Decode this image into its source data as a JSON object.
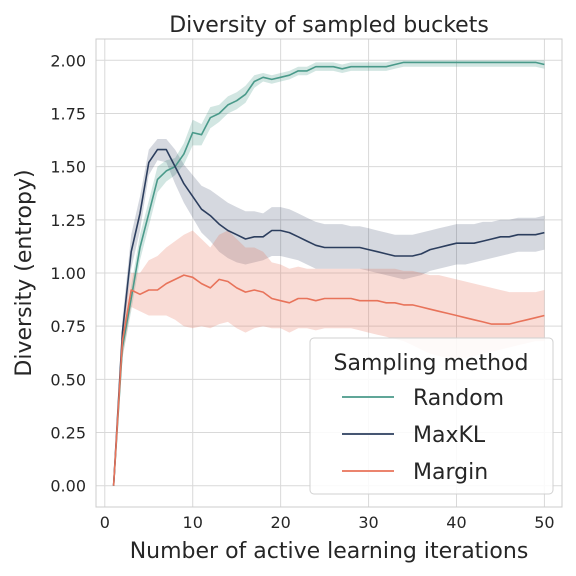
{
  "chart_data": {
    "type": "line",
    "title": "Diversity of sampled buckets",
    "xlabel": "Number of active learning iterations",
    "ylabel": "Diversity (entropy)",
    "xlim": [
      -1,
      52
    ],
    "ylim": [
      -0.1,
      2.1
    ],
    "xticks": [
      0,
      10,
      20,
      30,
      40,
      50
    ],
    "yticks": [
      0.0,
      0.25,
      0.5,
      0.75,
      1.0,
      1.25,
      1.5,
      1.75,
      2.0
    ],
    "ytick_labels": [
      "0.00",
      "0.25",
      "0.50",
      "0.75",
      "1.00",
      "1.25",
      "1.50",
      "1.75",
      "2.00"
    ],
    "grid": true,
    "legend": {
      "title": "Sampling method",
      "placement": "bottom-right"
    },
    "x": [
      1,
      2,
      3,
      4,
      5,
      6,
      7,
      8,
      9,
      10,
      11,
      12,
      13,
      14,
      15,
      16,
      17,
      18,
      19,
      20,
      21,
      22,
      23,
      24,
      25,
      26,
      27,
      28,
      29,
      30,
      31,
      32,
      33,
      34,
      35,
      36,
      37,
      38,
      39,
      40,
      41,
      42,
      43,
      44,
      45,
      46,
      47,
      48,
      49,
      50
    ],
    "series": [
      {
        "name": "Random",
        "color": "#4a9a8a",
        "band_opacity": 0.25,
        "values": [
          0.0,
          0.65,
          0.88,
          1.12,
          1.28,
          1.44,
          1.48,
          1.5,
          1.56,
          1.66,
          1.65,
          1.73,
          1.75,
          1.79,
          1.81,
          1.84,
          1.9,
          1.92,
          1.91,
          1.92,
          1.93,
          1.95,
          1.95,
          1.97,
          1.97,
          1.97,
          1.96,
          1.97,
          1.97,
          1.97,
          1.97,
          1.97,
          1.98,
          1.99,
          1.99,
          1.99,
          1.99,
          1.99,
          1.99,
          1.99,
          1.99,
          1.99,
          1.99,
          1.99,
          1.99,
          1.99,
          1.99,
          1.99,
          1.99,
          1.98
        ],
        "lower": [
          0.0,
          0.6,
          0.82,
          1.06,
          1.22,
          1.38,
          1.43,
          1.46,
          1.51,
          1.6,
          1.6,
          1.68,
          1.71,
          1.75,
          1.77,
          1.8,
          1.87,
          1.9,
          1.89,
          1.9,
          1.91,
          1.93,
          1.93,
          1.95,
          1.95,
          1.95,
          1.94,
          1.95,
          1.95,
          1.95,
          1.95,
          1.95,
          1.96,
          1.97,
          1.97,
          1.97,
          1.97,
          1.97,
          1.97,
          1.97,
          1.97,
          1.97,
          1.97,
          1.97,
          1.97,
          1.97,
          1.97,
          1.97,
          1.97,
          1.96
        ],
        "upper": [
          0.0,
          0.7,
          0.94,
          1.18,
          1.34,
          1.5,
          1.53,
          1.54,
          1.61,
          1.72,
          1.7,
          1.78,
          1.79,
          1.83,
          1.85,
          1.88,
          1.93,
          1.94,
          1.93,
          1.94,
          1.95,
          1.97,
          1.97,
          1.99,
          1.99,
          1.99,
          1.98,
          1.99,
          1.99,
          1.99,
          1.99,
          1.99,
          2.0,
          2.0,
          2.0,
          2.0,
          2.0,
          2.0,
          2.0,
          2.0,
          2.0,
          2.0,
          2.0,
          2.0,
          2.0,
          2.0,
          2.0,
          2.0,
          2.0,
          2.0
        ]
      },
      {
        "name": "MaxKL",
        "color": "#2c3e5e",
        "band_opacity": 0.2,
        "values": [
          0.0,
          0.72,
          1.1,
          1.28,
          1.52,
          1.58,
          1.58,
          1.5,
          1.42,
          1.36,
          1.3,
          1.27,
          1.23,
          1.2,
          1.18,
          1.16,
          1.17,
          1.17,
          1.2,
          1.2,
          1.19,
          1.17,
          1.15,
          1.13,
          1.12,
          1.12,
          1.12,
          1.12,
          1.12,
          1.11,
          1.1,
          1.09,
          1.08,
          1.08,
          1.08,
          1.09,
          1.11,
          1.12,
          1.13,
          1.14,
          1.14,
          1.14,
          1.15,
          1.16,
          1.17,
          1.17,
          1.18,
          1.18,
          1.18,
          1.19
        ],
        "lower": [
          0.0,
          0.66,
          1.02,
          1.2,
          1.46,
          1.53,
          1.52,
          1.42,
          1.33,
          1.26,
          1.19,
          1.15,
          1.1,
          1.07,
          1.05,
          1.04,
          1.05,
          1.06,
          1.08,
          1.08,
          1.07,
          1.06,
          1.04,
          1.02,
          1.02,
          1.02,
          1.02,
          1.02,
          1.02,
          1.01,
          1.0,
          0.99,
          0.98,
          0.97,
          0.98,
          0.99,
          1.01,
          1.02,
          1.03,
          1.04,
          1.04,
          1.05,
          1.06,
          1.07,
          1.08,
          1.09,
          1.1,
          1.1,
          1.1,
          1.11
        ],
        "upper": [
          0.0,
          0.78,
          1.18,
          1.36,
          1.58,
          1.63,
          1.63,
          1.58,
          1.51,
          1.46,
          1.41,
          1.39,
          1.36,
          1.33,
          1.31,
          1.29,
          1.29,
          1.28,
          1.31,
          1.31,
          1.3,
          1.28,
          1.26,
          1.24,
          1.23,
          1.23,
          1.23,
          1.22,
          1.22,
          1.21,
          1.2,
          1.19,
          1.18,
          1.18,
          1.18,
          1.19,
          1.2,
          1.21,
          1.22,
          1.23,
          1.23,
          1.23,
          1.24,
          1.24,
          1.25,
          1.25,
          1.26,
          1.26,
          1.26,
          1.27
        ]
      },
      {
        "name": "Margin",
        "color": "#e8735a",
        "band_opacity": 0.25,
        "values": [
          0.0,
          0.68,
          0.92,
          0.9,
          0.92,
          0.92,
          0.95,
          0.97,
          0.99,
          0.98,
          0.95,
          0.93,
          0.97,
          0.96,
          0.93,
          0.91,
          0.92,
          0.91,
          0.88,
          0.87,
          0.86,
          0.88,
          0.88,
          0.87,
          0.88,
          0.88,
          0.88,
          0.88,
          0.87,
          0.87,
          0.87,
          0.86,
          0.86,
          0.85,
          0.85,
          0.84,
          0.83,
          0.82,
          0.81,
          0.8,
          0.79,
          0.78,
          0.77,
          0.76,
          0.76,
          0.76,
          0.77,
          0.78,
          0.79,
          0.8
        ],
        "lower": [
          0.0,
          0.6,
          0.84,
          0.82,
          0.8,
          0.8,
          0.8,
          0.78,
          0.75,
          0.74,
          0.75,
          0.74,
          0.76,
          0.77,
          0.74,
          0.72,
          0.74,
          0.75,
          0.74,
          0.74,
          0.72,
          0.74,
          0.74,
          0.73,
          0.74,
          0.74,
          0.74,
          0.74,
          0.73,
          0.72,
          0.71,
          0.7,
          0.69,
          0.68,
          0.66,
          0.64,
          0.62,
          0.61,
          0.6,
          0.6,
          0.6,
          0.61,
          0.62,
          0.63,
          0.64,
          0.65,
          0.66,
          0.67,
          0.68,
          0.68
        ],
        "upper": [
          0.0,
          0.76,
          1.0,
          1.0,
          1.06,
          1.08,
          1.12,
          1.15,
          1.18,
          1.2,
          1.16,
          1.12,
          1.18,
          1.2,
          1.16,
          1.12,
          1.12,
          1.1,
          1.05,
          1.04,
          1.02,
          1.03,
          1.02,
          1.02,
          1.02,
          1.02,
          1.02,
          1.02,
          1.02,
          1.02,
          1.02,
          1.02,
          1.02,
          1.01,
          1.01,
          1.0,
          0.99,
          0.99,
          0.98,
          0.97,
          0.96,
          0.95,
          0.94,
          0.93,
          0.92,
          0.91,
          0.91,
          0.91,
          0.91,
          0.92
        ]
      }
    ]
  }
}
